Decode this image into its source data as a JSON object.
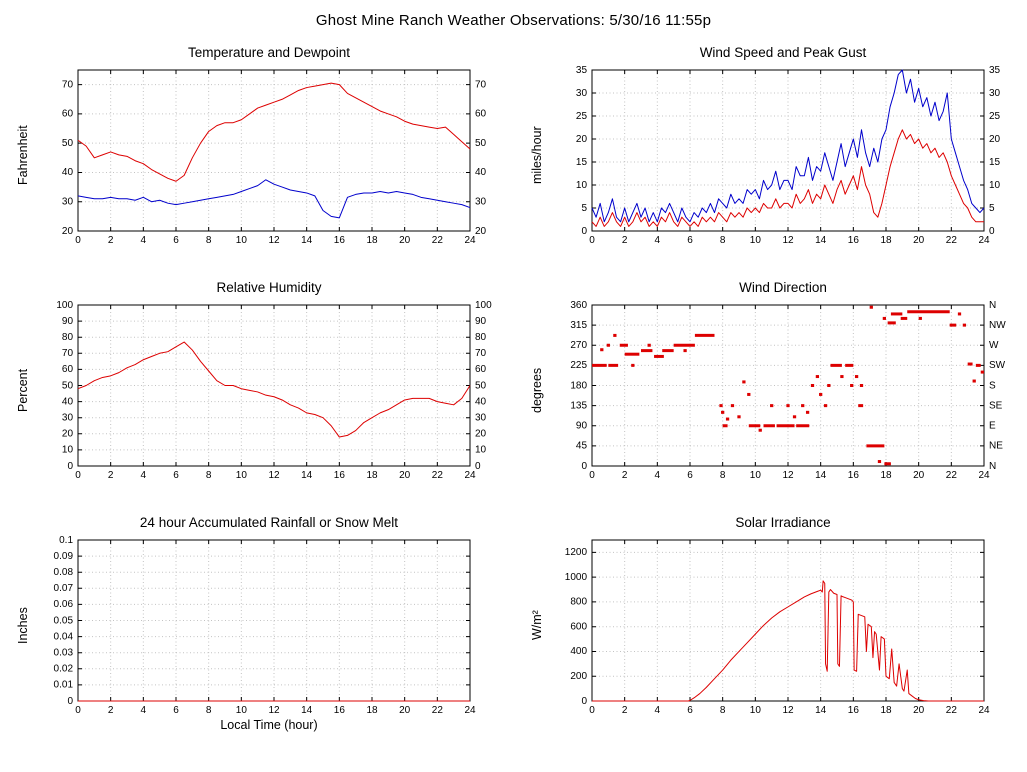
{
  "header": {
    "title": "Ghost Mine Ranch Weather Observations: 5/30/16 11:55p"
  },
  "chart_data": [
    {
      "id": "temperature-dewpoint",
      "type": "line",
      "title": "Temperature and Dewpoint",
      "ylabel": "Fahrenheit",
      "xlabel": "",
      "xlim": [
        0,
        24
      ],
      "xticks": [
        0,
        2,
        4,
        6,
        8,
        10,
        12,
        14,
        16,
        18,
        20,
        22,
        24
      ],
      "ylim": [
        20,
        75
      ],
      "yticks": [
        20,
        30,
        40,
        50,
        60,
        70
      ],
      "mirror_y_labels": true,
      "grid": true,
      "series": [
        {
          "name": "temperature",
          "color": "#dd0000",
          "x0": 0,
          "dx": 0.5,
          "y": [
            51,
            49,
            45,
            46,
            47,
            46,
            45.5,
            44,
            43,
            41,
            39.5,
            38,
            37,
            39,
            45,
            50,
            54,
            56,
            57,
            57,
            58,
            60,
            62,
            63,
            64,
            65,
            66.5,
            68,
            69,
            69.5,
            70,
            70.5,
            70,
            67,
            65.5,
            64,
            62.5,
            61,
            60,
            59,
            57.5,
            56.5,
            56,
            55.5,
            55,
            55.5,
            53,
            50.5,
            48
          ]
        },
        {
          "name": "dewpoint",
          "color": "#0000cc",
          "x0": 0,
          "dx": 0.5,
          "y": [
            32,
            31.5,
            31,
            31,
            31.5,
            31,
            31,
            30.5,
            31.5,
            30,
            30.5,
            29.5,
            29,
            29.5,
            30,
            30.5,
            31,
            31.5,
            32,
            32.5,
            33.5,
            34.5,
            35.5,
            37.5,
            36,
            35,
            34,
            33.5,
            33,
            32,
            27,
            25,
            24.5,
            31.5,
            32.5,
            33,
            33,
            33.5,
            33,
            33.5,
            33,
            32.5,
            31.5,
            31,
            30.5,
            30,
            29.5,
            29,
            28
          ]
        }
      ]
    },
    {
      "id": "wind-speed-gust",
      "type": "line",
      "title": "Wind Speed and Peak Gust",
      "ylabel": "miles/hour",
      "xlabel": "",
      "xlim": [
        0,
        24
      ],
      "xticks": [
        0,
        2,
        4,
        6,
        8,
        10,
        12,
        14,
        16,
        18,
        20,
        22,
        24
      ],
      "ylim": [
        0,
        35
      ],
      "yticks": [
        0,
        5,
        10,
        15,
        20,
        25,
        30,
        35
      ],
      "mirror_y_labels": true,
      "grid": true,
      "series": [
        {
          "name": "peak-gust",
          "color": "#0000cc",
          "x0": 0,
          "dx": 0.25,
          "y": [
            5,
            3,
            6,
            2,
            4,
            7,
            3,
            2,
            5,
            2,
            4,
            6,
            3,
            5,
            2,
            4,
            2,
            5,
            4,
            6,
            4,
            2,
            5,
            3,
            2,
            4,
            3,
            5,
            4,
            6,
            4,
            7,
            6,
            5,
            8,
            6,
            7,
            6,
            9,
            8,
            9,
            7,
            11,
            9,
            10,
            13,
            9,
            11,
            11,
            9,
            14,
            12,
            12,
            16,
            11,
            14,
            13,
            17,
            14,
            11,
            15,
            19,
            14,
            17,
            20,
            16,
            22,
            17,
            14,
            18,
            15,
            20,
            22,
            27,
            30,
            34,
            35,
            30,
            33,
            28,
            31,
            27,
            29,
            25,
            28,
            24,
            26,
            30,
            20,
            17,
            14,
            11,
            9,
            6,
            5,
            4,
            5
          ]
        },
        {
          "name": "wind-speed",
          "color": "#dd0000",
          "x0": 0,
          "dx": 0.25,
          "y": [
            2,
            1,
            3,
            1,
            2,
            4,
            2,
            1,
            3,
            1,
            2,
            4,
            2,
            3,
            1,
            2,
            1,
            3,
            2,
            4,
            2,
            1,
            3,
            2,
            1,
            2,
            1,
            3,
            2,
            3,
            2,
            4,
            3,
            2,
            4,
            3,
            4,
            3,
            5,
            4,
            5,
            4,
            6,
            5,
            5,
            7,
            5,
            6,
            6,
            5,
            8,
            6,
            7,
            9,
            6,
            8,
            7,
            10,
            8,
            6,
            9,
            11,
            8,
            10,
            12,
            9,
            14,
            10,
            8,
            4,
            3,
            6,
            10,
            14,
            17,
            20,
            22,
            20,
            21,
            19,
            20,
            18,
            19,
            17,
            18,
            16,
            17,
            15,
            12,
            10,
            8,
            6,
            5,
            3,
            2,
            2,
            2
          ]
        }
      ]
    },
    {
      "id": "relative-humidity",
      "type": "line",
      "title": "Relative Humidity",
      "ylabel": "Percent",
      "xlabel": "",
      "xlim": [
        0,
        24
      ],
      "xticks": [
        0,
        2,
        4,
        6,
        8,
        10,
        12,
        14,
        16,
        18,
        20,
        22,
        24
      ],
      "ylim": [
        0,
        100
      ],
      "yticks": [
        0,
        10,
        20,
        30,
        40,
        50,
        60,
        70,
        80,
        90,
        100
      ],
      "mirror_y_labels": true,
      "grid": true,
      "series": [
        {
          "name": "relative-humidity",
          "color": "#dd0000",
          "x0": 0,
          "dx": 0.5,
          "y": [
            48,
            50,
            53,
            55,
            56,
            58,
            61,
            63,
            66,
            68,
            70,
            71,
            74,
            77,
            72,
            65,
            59,
            53,
            50,
            50,
            48,
            47,
            46,
            44,
            43,
            41,
            38,
            36,
            33,
            32,
            30,
            25,
            18,
            19,
            22,
            27,
            30,
            33,
            35,
            38,
            41,
            42,
            42,
            42,
            40,
            39,
            38,
            42,
            50
          ]
        }
      ]
    },
    {
      "id": "wind-direction",
      "type": "scatter",
      "title": "Wind Direction",
      "ylabel": "degrees",
      "xlabel": "",
      "xlim": [
        0,
        24
      ],
      "xticks": [
        0,
        2,
        4,
        6,
        8,
        10,
        12,
        14,
        16,
        18,
        20,
        22,
        24
      ],
      "ylim": [
        0,
        360
      ],
      "yticks": [
        0,
        45,
        90,
        135,
        180,
        225,
        270,
        315,
        360
      ],
      "ytick_labels_right": [
        "N",
        "NE",
        "E",
        "SE",
        "S",
        "SW",
        "W",
        "NW",
        "N"
      ],
      "grid": true,
      "series": [
        {
          "name": "wind-direction",
          "color": "#dd0000",
          "runs": [
            [
              0,
              0.9,
              225
            ],
            [
              0.5,
              0.7,
              260
            ],
            [
              0.9,
              1.1,
              270
            ],
            [
              1.0,
              1.6,
              225
            ],
            [
              1.3,
              1.5,
              292
            ],
            [
              1.7,
              2.2,
              270
            ],
            [
              2.0,
              2.9,
              250
            ],
            [
              2.4,
              2.6,
              225
            ],
            [
              3.0,
              3.7,
              258
            ],
            [
              3.4,
              3.6,
              270
            ],
            [
              3.8,
              4.4,
              245
            ],
            [
              4.3,
              5.0,
              258
            ],
            [
              5.0,
              6.3,
              270
            ],
            [
              5.6,
              5.8,
              258
            ],
            [
              6.3,
              7.5,
              292
            ],
            [
              7.8,
              8.0,
              135
            ],
            [
              7.9,
              8.1,
              120
            ],
            [
              8.0,
              8.3,
              90
            ],
            [
              8.2,
              8.4,
              105
            ],
            [
              8.5,
              8.7,
              135
            ],
            [
              8.9,
              9.1,
              110
            ],
            [
              9.2,
              9.4,
              188
            ],
            [
              9.5,
              9.7,
              160
            ],
            [
              9.6,
              10.3,
              90
            ],
            [
              10.2,
              10.4,
              80
            ],
            [
              10.5,
              11.2,
              90
            ],
            [
              10.9,
              11.1,
              135
            ],
            [
              11.3,
              12.4,
              90
            ],
            [
              11.9,
              12.1,
              135
            ],
            [
              12.3,
              12.5,
              110
            ],
            [
              12.5,
              13.3,
              90
            ],
            [
              12.8,
              13.0,
              135
            ],
            [
              13.1,
              13.3,
              120
            ],
            [
              13.4,
              13.6,
              180
            ],
            [
              13.7,
              13.9,
              200
            ],
            [
              13.9,
              14.1,
              160
            ],
            [
              14.2,
              14.4,
              135
            ],
            [
              14.4,
              14.6,
              180
            ],
            [
              14.6,
              15.3,
              225
            ],
            [
              15.2,
              15.4,
              200
            ],
            [
              15.5,
              16.0,
              225
            ],
            [
              15.8,
              16.0,
              180
            ],
            [
              16.1,
              16.3,
              200
            ],
            [
              16.3,
              16.6,
              135
            ],
            [
              16.4,
              16.6,
              180
            ],
            [
              16.8,
              17.9,
              45
            ],
            [
              17.0,
              17.2,
              355
            ],
            [
              17.5,
              17.7,
              10
            ],
            [
              17.9,
              18.3,
              5
            ],
            [
              17.8,
              18.0,
              330
            ],
            [
              18.1,
              18.6,
              320
            ],
            [
              18.3,
              19.0,
              340
            ],
            [
              18.9,
              19.3,
              330
            ],
            [
              19.3,
              21.9,
              345
            ],
            [
              20.0,
              20.2,
              330
            ],
            [
              21.9,
              22.3,
              315
            ],
            [
              22.4,
              22.6,
              340
            ],
            [
              22.7,
              22.9,
              315
            ],
            [
              23.0,
              23.3,
              228
            ],
            [
              23.3,
              23.5,
              190
            ],
            [
              23.5,
              23.8,
              225
            ],
            [
              23.8,
              24.0,
              210
            ]
          ]
        }
      ]
    },
    {
      "id": "rainfall",
      "type": "line",
      "title": "24 hour Accumulated Rainfall or Snow Melt",
      "ylabel": "Inches",
      "xlabel": "Local Time (hour)",
      "xlim": [
        0,
        24
      ],
      "xticks": [
        0,
        2,
        4,
        6,
        8,
        10,
        12,
        14,
        16,
        18,
        20,
        22,
        24
      ],
      "ylim": [
        0,
        0.1
      ],
      "yticks": [
        0,
        0.01,
        0.02,
        0.03,
        0.04,
        0.05,
        0.06,
        0.07,
        0.08,
        0.09,
        0.1
      ],
      "ytick_labels": [
        "0",
        "0.01",
        "0.02",
        "0.03",
        "0.04",
        "0.05",
        "0.06",
        "0.07",
        "0.08",
        "0.09",
        "0.1"
      ],
      "mirror_y_labels": false,
      "grid": true,
      "series": [
        {
          "name": "accumulated-rainfall",
          "color": "#dd0000",
          "x": [
            0,
            24
          ],
          "y": [
            0,
            0
          ]
        }
      ]
    },
    {
      "id": "solar-irradiance",
      "type": "line",
      "title": "Solar Irradiance",
      "ylabel": "W/m²",
      "xlabel": "",
      "xlim": [
        0,
        24
      ],
      "xticks": [
        0,
        2,
        4,
        6,
        8,
        10,
        12,
        14,
        16,
        18,
        20,
        22,
        24
      ],
      "ylim": [
        0,
        1300
      ],
      "yticks": [
        0,
        200,
        400,
        600,
        800,
        1000,
        1200
      ],
      "mirror_y_labels": false,
      "grid": true,
      "series": [
        {
          "name": "solar-irradiance",
          "color": "#dd0000",
          "x": [
            0,
            5.9,
            6.0,
            6.3,
            6.6,
            7.0,
            7.5,
            8.0,
            8.5,
            9.0,
            9.5,
            10.0,
            10.5,
            11.0,
            11.5,
            12.0,
            12.5,
            13.0,
            13.4,
            13.8,
            14.0,
            14.1,
            14.15,
            14.25,
            14.3,
            14.4,
            14.5,
            14.6,
            14.8,
            15.0,
            15.05,
            15.15,
            15.25,
            15.3,
            15.5,
            15.7,
            15.9,
            16.0,
            16.05,
            16.2,
            16.3,
            16.5,
            16.7,
            16.8,
            16.9,
            17.1,
            17.2,
            17.3,
            17.4,
            17.6,
            17.7,
            17.9,
            18.0,
            18.2,
            18.35,
            18.5,
            18.65,
            18.8,
            19.0,
            19.1,
            19.3,
            19.4,
            19.6,
            19.8,
            20.0,
            20.3,
            20.6,
            21.0,
            22.0,
            23.0,
            24.0
          ],
          "y": [
            0,
            0,
            5,
            30,
            60,
            110,
            180,
            250,
            330,
            400,
            470,
            540,
            610,
            670,
            720,
            760,
            800,
            840,
            865,
            885,
            895,
            880,
            970,
            950,
            300,
            240,
            880,
            900,
            870,
            860,
            300,
            280,
            850,
            845,
            835,
            825,
            815,
            800,
            250,
            240,
            700,
            690,
            680,
            400,
            620,
            600,
            350,
            560,
            540,
            250,
            520,
            500,
            200,
            180,
            420,
            150,
            120,
            300,
            100,
            80,
            250,
            60,
            40,
            20,
            10,
            3,
            0,
            0,
            0,
            0,
            0
          ]
        }
      ]
    }
  ]
}
